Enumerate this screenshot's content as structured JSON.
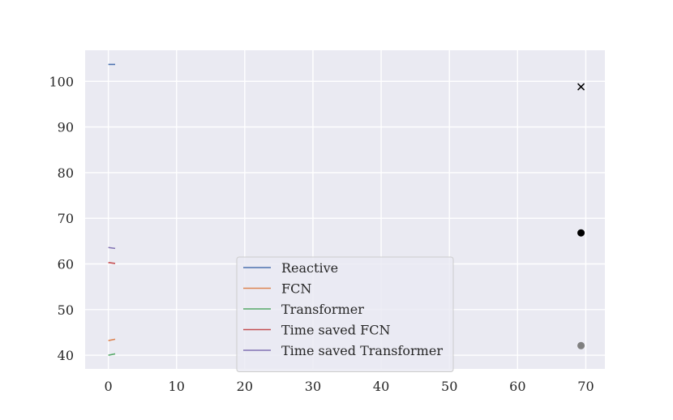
{
  "chart_data": {
    "type": "line",
    "title": "",
    "xlabel": "",
    "ylabel": "",
    "xlim": [
      -3.4,
      72.8
    ],
    "ylim": [
      37,
      106.8
    ],
    "x_ticks": [
      0,
      10,
      20,
      30,
      40,
      50,
      60,
      70
    ],
    "y_ticks": [
      40,
      50,
      60,
      70,
      80,
      90,
      100
    ],
    "grid": true,
    "legend_position": "lower center",
    "series": [
      {
        "name": "Reactive",
        "color": "#4c72b0",
        "x": [
          0,
          1
        ],
        "y": [
          103.7,
          103.7
        ]
      },
      {
        "name": "FCN",
        "color": "#dd8452",
        "x": [
          0,
          1
        ],
        "y": [
          43.2,
          43.5
        ]
      },
      {
        "name": "Transformer",
        "color": "#55a868",
        "x": [
          0,
          1
        ],
        "y": [
          40.0,
          40.3
        ]
      },
      {
        "name": "Time saved FCN",
        "color": "#c44e52",
        "x": [
          0,
          1
        ],
        "y": [
          60.3,
          60.1
        ]
      },
      {
        "name": "Time saved Transformer",
        "color": "#8172b3",
        "x": [
          0,
          1
        ],
        "y": [
          63.6,
          63.4
        ]
      }
    ],
    "markers": [
      {
        "x": 69.3,
        "y": 98.8,
        "shape": "x",
        "color": "#000000"
      },
      {
        "x": 69.3,
        "y": 66.8,
        "shape": "circle",
        "color": "#000000"
      },
      {
        "x": 69.3,
        "y": 42.1,
        "shape": "circle",
        "color": "#808080"
      }
    ]
  }
}
